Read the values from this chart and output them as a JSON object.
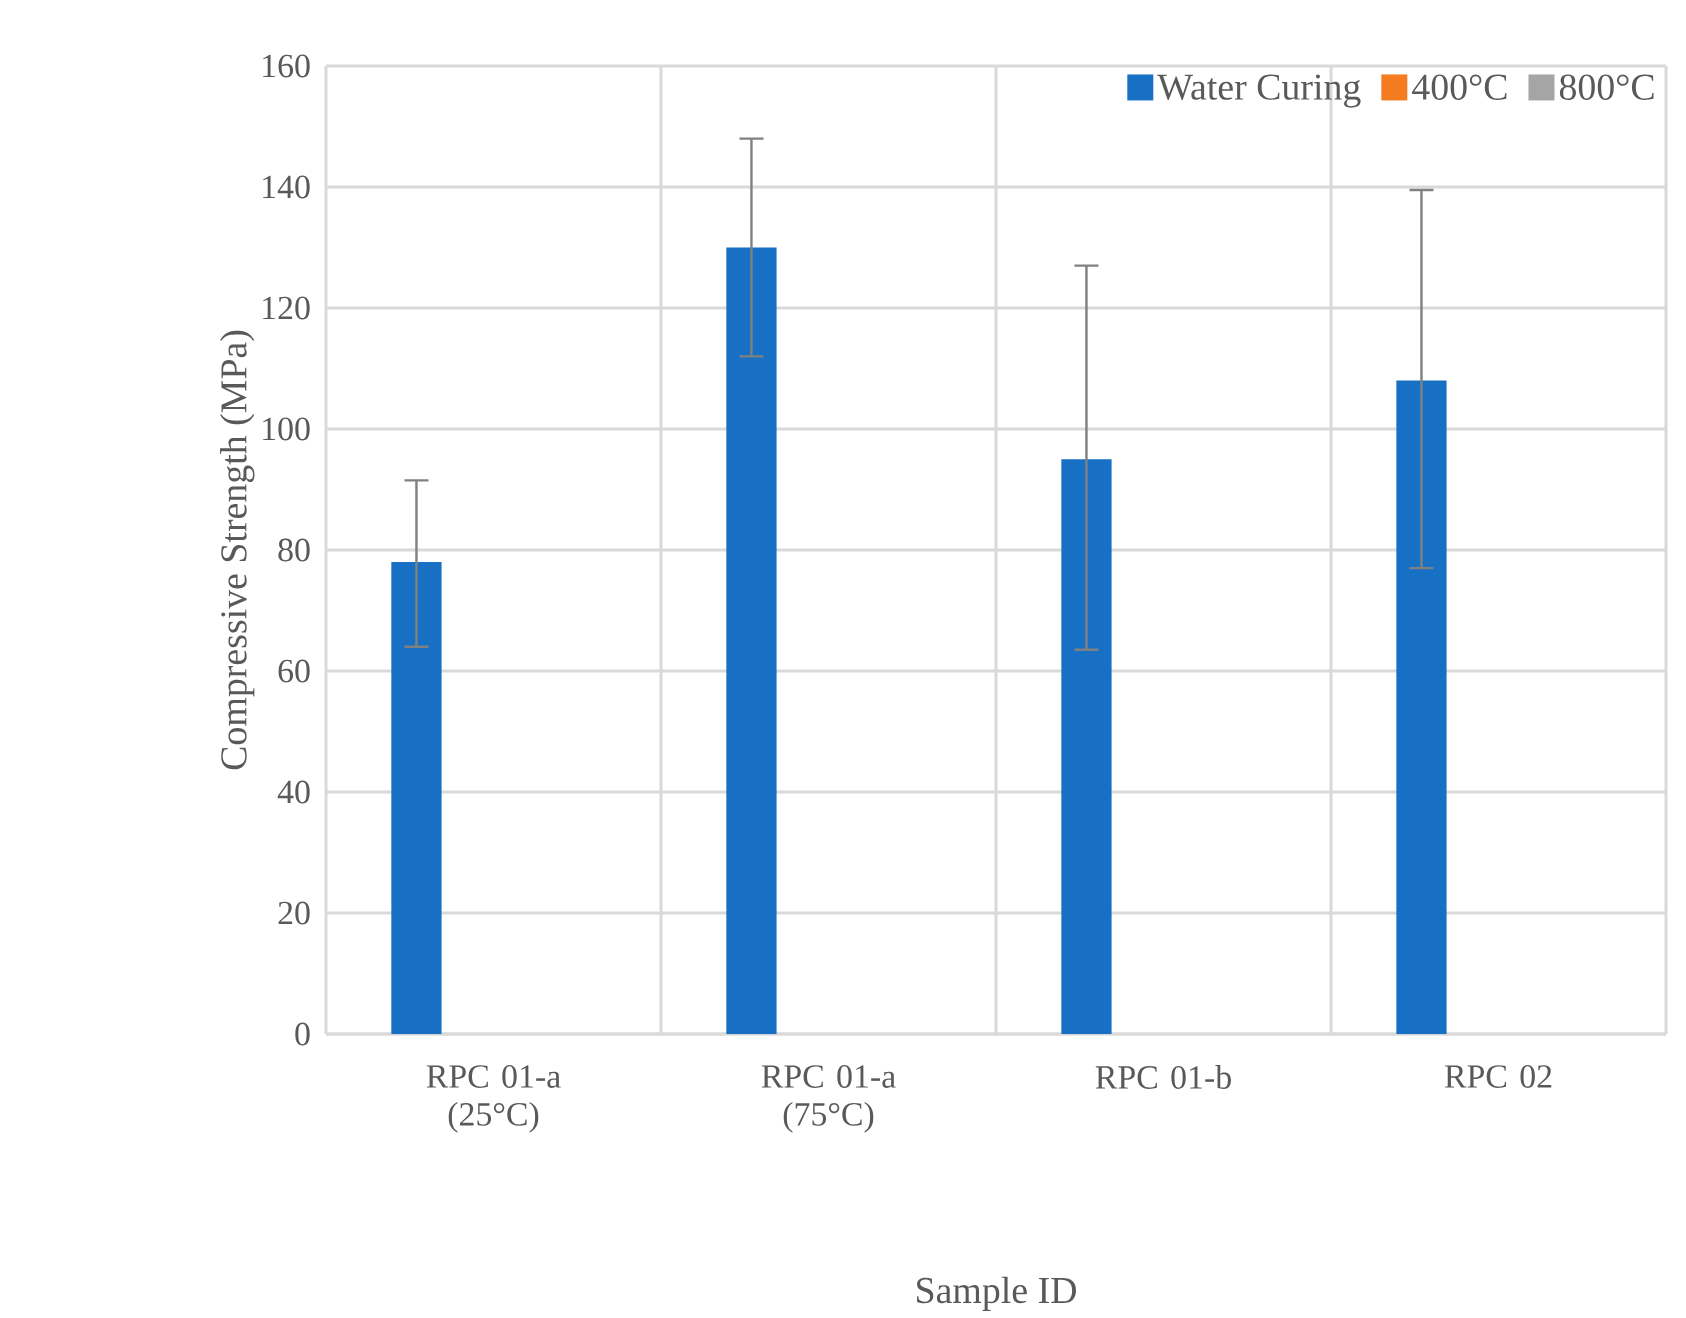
{
  "chart_data": {
    "type": "bar",
    "xlabel": "Sample ID",
    "ylabel": "Compressive  Strength (MPa)",
    "categories": [
      "RPC 01-a (25°C)",
      "RPC 01-a (75°C)",
      "RPC 01-b",
      "RPC 02"
    ],
    "series": [
      {
        "name": "Water Curing",
        "color": "#1770c4",
        "values": [
          78,
          130,
          95,
          108
        ],
        "errors": [
          [
            64,
            91.5
          ],
          [
            112,
            148
          ],
          [
            63.5,
            127
          ],
          [
            77,
            139.5
          ]
        ]
      },
      {
        "name": "400°C",
        "color": "#f47b20",
        "values": [
          null,
          null,
          null,
          null
        ]
      },
      {
        "name": "800°C",
        "color": "#a5a5a5",
        "values": [
          null,
          null,
          null,
          null
        ]
      }
    ],
    "ylim": [
      0,
      160
    ],
    "yticks": [
      0,
      20,
      40,
      60,
      80,
      100,
      120,
      140,
      160
    ],
    "grid": true,
    "legend": "top right"
  }
}
